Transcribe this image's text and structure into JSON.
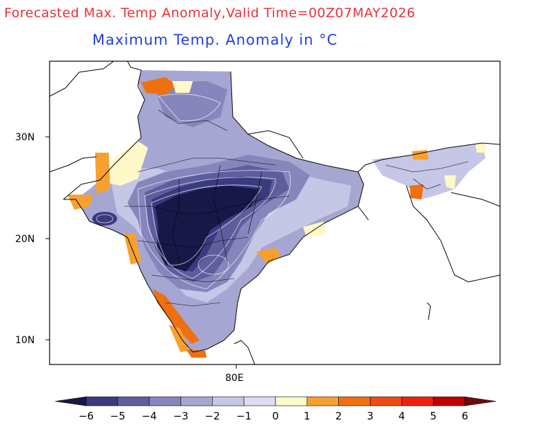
{
  "header": {
    "title": "Forecasted Max. Temp Anomaly,Valid Time=00Z07MAY2026",
    "subtitle": "Maximum Temp. Anomaly in °C"
  },
  "axes": {
    "lat_ticks": [
      "30N",
      "20N",
      "10N"
    ],
    "lon_ticks": [
      "80E"
    ]
  },
  "colorbar": {
    "labels": [
      "−6",
      "−5",
      "−4",
      "−3",
      "−2",
      "−1",
      "0",
      "1",
      "2",
      "3",
      "4",
      "5",
      "6"
    ],
    "colors": [
      "#181848",
      "#3a3a7e",
      "#5e5e9e",
      "#8686bc",
      "#a6a6d2",
      "#c6c6e6",
      "#dcdcf2",
      "#fff8c8",
      "#f8a030",
      "#f07010",
      "#f04a10",
      "#f02010",
      "#c00000",
      "#6a0c0c"
    ]
  }
}
